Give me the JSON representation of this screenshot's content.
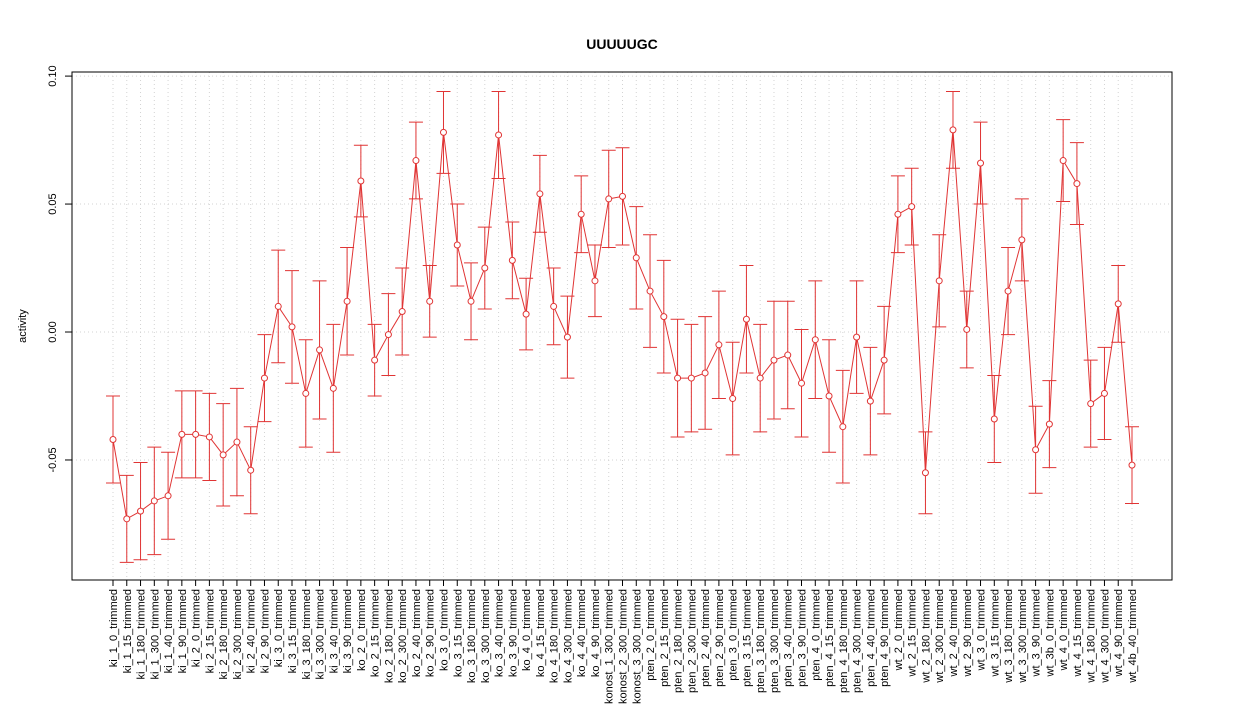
{
  "chart_data": {
    "type": "errorbar-line",
    "title": "UUUUUGC",
    "y_label": "activity",
    "color": "#e03434",
    "grid": true,
    "categories": [
      "ki_1_0_trimmed",
      "ki_1_15_trimmed",
      "ki_1_180_trimmed",
      "ki_1_300_trimmed",
      "ki_1_40_trimmed",
      "ki_1_90_trimmed",
      "ki_2_0_trimmed",
      "ki_2_15_trimmed",
      "ki_2_180_trimmed",
      "ki_2_300_trimmed",
      "ki_2_40_trimmed",
      "ki_2_90_trimmed",
      "ki_3_0_trimmed",
      "ki_3_15_trimmed",
      "ki_3_180_trimmed",
      "ki_3_300_trimmed",
      "ki_3_40_trimmed",
      "ki_3_90_trimmed",
      "ko_2_0_trimmed",
      "ko_2_15_trimmed",
      "ko_2_180_trimmed",
      "ko_2_300_trimmed",
      "ko_2_40_trimmed",
      "ko_2_90_trimmed",
      "ko_3_0_trimmed",
      "ko_3_15_trimmed",
      "ko_3_180_trimmed",
      "ko_3_300_trimmed",
      "ko_3_40_trimmed",
      "ko_3_90_trimmed",
      "ko_4_0_trimmed",
      "ko_4_15_trimmed",
      "ko_4_180_trimmed",
      "ko_4_300_trimmed",
      "ko_4_40_trimmed",
      "ko_4_90_trimmed",
      "konost_1_300_trimmed",
      "konost_2_300_trimmed",
      "konost_3_300_trimmed",
      "pten_2_0_trimmed",
      "pten_2_15_trimmed",
      "pten_2_180_trimmed",
      "pten_2_300_trimmed",
      "pten_2_40_trimmed",
      "pten_2_90_trimmed",
      "pten_3_0_trimmed",
      "pten_3_15_trimmed",
      "pten_3_180_trimmed",
      "pten_3_300_trimmed",
      "pten_3_40_trimmed",
      "pten_3_90_trimmed",
      "pten_4_0_trimmed",
      "pten_4_15_trimmed",
      "pten_4_180_trimmed",
      "pten_4_300_trimmed",
      "pten_4_40_trimmed",
      "pten_4_90_trimmed",
      "wt_2_0_trimmed",
      "wt_2_15_trimmed",
      "wt_2_180_trimmed",
      "wt_2_300_trimmed",
      "wt_2_40_trimmed",
      "wt_2_90_trimmed",
      "wt_3_0_trimmed",
      "wt_3_15_trimmed",
      "wt_3_180_trimmed",
      "wt_3_300_trimmed",
      "wt_3_90_trimmed",
      "wt_3b_0_trimmed",
      "wt_4_0_trimmed",
      "wt_4_15_trimmed",
      "wt_4_180_trimmed",
      "wt_4_300_trimmed",
      "wt_4_90_trimmed",
      "wt_4b_40_trimmed"
    ],
    "values": [
      -0.042,
      -0.073,
      -0.07,
      -0.066,
      -0.064,
      -0.04,
      -0.04,
      -0.041,
      -0.048,
      -0.043,
      -0.054,
      -0.018,
      0.01,
      0.002,
      -0.024,
      -0.007,
      -0.022,
      0.012,
      0.059,
      -0.011,
      -0.001,
      0.008,
      0.067,
      0.012,
      0.078,
      0.034,
      0.012,
      0.025,
      0.077,
      0.028,
      0.007,
      0.054,
      0.01,
      -0.002,
      0.046,
      0.02,
      0.052,
      0.053,
      0.029,
      0.016,
      0.006,
      -0.018,
      -0.018,
      -0.016,
      -0.005,
      -0.026,
      0.005,
      -0.018,
      -0.011,
      -0.009,
      -0.02,
      -0.003,
      -0.025,
      -0.037,
      -0.002,
      -0.027,
      -0.011,
      0.046,
      0.049,
      -0.055,
      0.02,
      0.079,
      0.001,
      0.066,
      -0.034,
      0.016,
      0.036,
      -0.046,
      -0.036,
      0.067,
      0.058,
      -0.028,
      -0.024,
      0.011,
      -0.052
    ],
    "errors": [
      0.017,
      0.017,
      0.019,
      0.021,
      0.017,
      0.017,
      0.017,
      0.017,
      0.02,
      0.021,
      0.017,
      0.017,
      0.022,
      0.022,
      0.021,
      0.027,
      0.025,
      0.021,
      0.014,
      0.014,
      0.016,
      0.017,
      0.015,
      0.014,
      0.016,
      0.016,
      0.015,
      0.016,
      0.017,
      0.015,
      0.014,
      0.015,
      0.015,
      0.016,
      0.015,
      0.014,
      0.019,
      0.019,
      0.02,
      0.022,
      0.022,
      0.023,
      0.021,
      0.022,
      0.021,
      0.022,
      0.021,
      0.021,
      0.023,
      0.021,
      0.021,
      0.023,
      0.022,
      0.022,
      0.022,
      0.021,
      0.021,
      0.015,
      0.015,
      0.016,
      0.018,
      0.015,
      0.015,
      0.016,
      0.017,
      0.017,
      0.016,
      0.017,
      0.017,
      0.016,
      0.016,
      0.017,
      0.018,
      0.015,
      0.015
    ],
    "ylim": [
      -0.0969,
      0.1016
    ],
    "yticks": [
      -0.05,
      {
        "value": 0,
        "label": "0.00"
      },
      0.05,
      {
        "value": 0.1,
        "label": "0.10"
      }
    ]
  }
}
